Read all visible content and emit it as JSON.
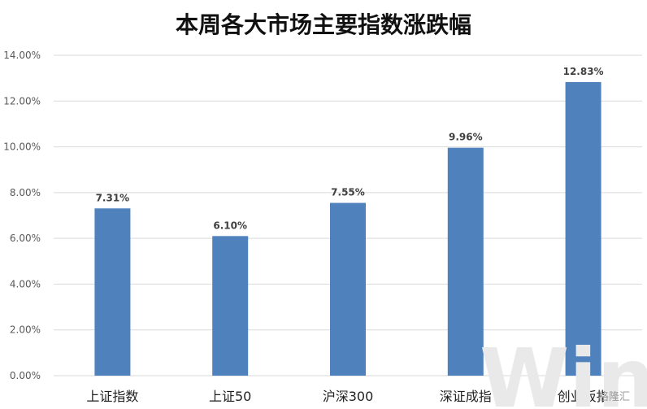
{
  "chart_data": {
    "type": "bar",
    "title": "本周各大市场主要指数涨跌幅",
    "categories": [
      "上证指数",
      "上证50",
      "沪深300",
      "深证成指",
      "创业板指"
    ],
    "values": [
      7.31,
      6.1,
      7.55,
      9.96,
      12.83
    ],
    "data_labels": [
      "7.31%",
      "6.10%",
      "7.55%",
      "9.96%",
      "12.83%"
    ],
    "ylim": [
      0,
      14
    ],
    "yticks": [
      0,
      2,
      4,
      6,
      8,
      10,
      12,
      14
    ],
    "ytick_labels": [
      "0.00%",
      "2.00%",
      "4.00%",
      "6.00%",
      "8.00%",
      "10.00%",
      "12.00%",
      "14.00%"
    ],
    "grid": true,
    "legend": "none",
    "bar_color": "#4f81bd",
    "grid_color": "#d9d9d9"
  },
  "watermark": {
    "brand": "Wind",
    "source": "格隆汇"
  }
}
